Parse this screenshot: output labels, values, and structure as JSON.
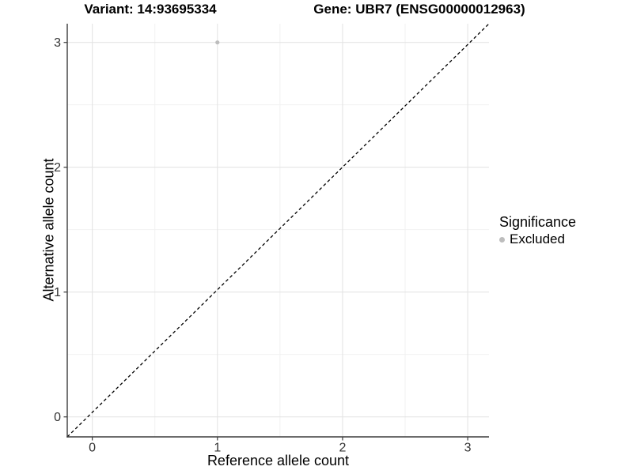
{
  "titles": {
    "variant": "Variant: 14:93695334",
    "gene": "Gene: UBR7 (ENSG00000012963)"
  },
  "chart_data": {
    "type": "scatter",
    "title": "Variant: 14:93695334  Gene: UBR7 (ENSG00000012963)",
    "xlabel": "Reference allele count",
    "ylabel": "Alternative allele count",
    "xlim": [
      -0.2,
      3.17
    ],
    "ylim": [
      -0.16,
      3.15
    ],
    "xticks": [
      0,
      1,
      2,
      3
    ],
    "yticks": [
      0,
      1,
      2,
      3
    ],
    "x_minor_ticks": [
      0.5,
      1.5,
      2.5
    ],
    "y_minor_ticks": [
      0.5,
      1.5,
      2.5
    ],
    "grid": true,
    "points": [
      {
        "x": 1,
        "y": 3,
        "significance": "Excluded"
      }
    ],
    "reference_line": {
      "slope": 1,
      "intercept": 0,
      "style": "dashed",
      "color": "#000000"
    },
    "legend": {
      "title": "Significance",
      "position": "right",
      "items": [
        {
          "label": "Excluded",
          "color": "#bdbdbd",
          "marker": "circle"
        }
      ]
    },
    "colors": {
      "excluded_point": "#bdbdbd",
      "grid_major": "#e4e4e4",
      "grid_minor": "#f0f0f0",
      "axis_line": "#3c3c3c",
      "tick_text": "#333333",
      "background": "#ffffff"
    }
  }
}
